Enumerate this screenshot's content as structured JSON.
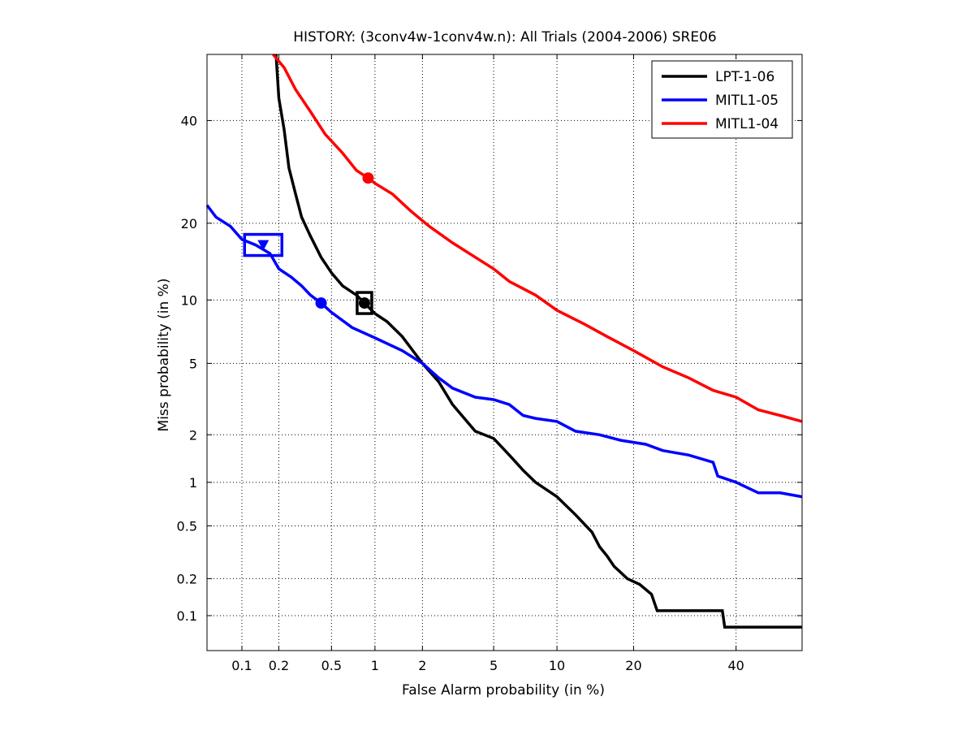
{
  "chart_data": {
    "type": "line",
    "title": "HISTORY: (3conv4w-1conv4w.n): All Trials (2004-2006) SRE06",
    "xlabel": "False Alarm probability (in %)",
    "ylabel": "Miss probability (in %)",
    "x_scale": "probit",
    "y_scale": "probit",
    "xlim": [
      0.05,
      55
    ],
    "ylim": [
      0.05,
      55
    ],
    "x_ticks": [
      0.1,
      0.2,
      0.5,
      1,
      2,
      5,
      10,
      20,
      40
    ],
    "x_tick_labels": [
      "0.1",
      "0.2",
      "0.5",
      "1",
      "2",
      "5",
      "10",
      "20",
      "40"
    ],
    "y_ticks": [
      0.1,
      0.2,
      0.5,
      1,
      2,
      5,
      10,
      20,
      40
    ],
    "y_tick_labels": [
      "0.1",
      "0.2",
      "0.5",
      "1",
      "2",
      "5",
      "10",
      "20",
      "40"
    ],
    "grid": true,
    "legend_position": "top-right",
    "series": [
      {
        "name": "LPT-1-06",
        "color": "#000000",
        "points": [
          [
            0.19,
            55
          ],
          [
            0.2,
            45
          ],
          [
            0.22,
            38
          ],
          [
            0.24,
            30
          ],
          [
            0.27,
            25
          ],
          [
            0.3,
            21
          ],
          [
            0.35,
            18
          ],
          [
            0.42,
            15
          ],
          [
            0.5,
            13
          ],
          [
            0.6,
            11.5
          ],
          [
            0.75,
            10.5
          ],
          [
            0.85,
            9.7
          ],
          [
            1.0,
            8.7
          ],
          [
            1.2,
            8.0
          ],
          [
            1.5,
            6.8
          ],
          [
            2.0,
            5.0
          ],
          [
            2.5,
            4.0
          ],
          [
            3.0,
            3.0
          ],
          [
            4.0,
            2.1
          ],
          [
            5.0,
            1.9
          ],
          [
            6.0,
            1.5
          ],
          [
            7.0,
            1.2
          ],
          [
            8.0,
            1.0
          ],
          [
            10.0,
            0.8
          ],
          [
            12.0,
            0.6
          ],
          [
            14.0,
            0.45
          ],
          [
            15.0,
            0.35
          ],
          [
            16.0,
            0.3
          ],
          [
            17.0,
            0.25
          ],
          [
            19.0,
            0.2
          ],
          [
            21.0,
            0.18
          ],
          [
            23.0,
            0.15
          ],
          [
            24.0,
            0.11
          ],
          [
            37.0,
            0.11
          ],
          [
            37.5,
            0.08
          ],
          [
            55.0,
            0.08
          ]
        ],
        "markers": [
          {
            "x": 0.85,
            "y": 9.7,
            "shape": "circle"
          },
          {
            "x": 0.85,
            "y": 9.7,
            "shape": "square-box"
          }
        ]
      },
      {
        "name": "MITL1-05",
        "color": "#0000ff",
        "points": [
          [
            0.05,
            23
          ],
          [
            0.06,
            21
          ],
          [
            0.08,
            19.5
          ],
          [
            0.1,
            17.5
          ],
          [
            0.13,
            16.7
          ],
          [
            0.17,
            15.5
          ],
          [
            0.2,
            13.5
          ],
          [
            0.25,
            12.5
          ],
          [
            0.3,
            11.5
          ],
          [
            0.35,
            10.5
          ],
          [
            0.42,
            9.7
          ],
          [
            0.5,
            8.8
          ],
          [
            0.7,
            7.5
          ],
          [
            1.0,
            6.7
          ],
          [
            1.5,
            5.8
          ],
          [
            2.0,
            5.0
          ],
          [
            2.5,
            4.2
          ],
          [
            3.0,
            3.7
          ],
          [
            4.0,
            3.3
          ],
          [
            5.0,
            3.2
          ],
          [
            6.0,
            3.0
          ],
          [
            7.0,
            2.6
          ],
          [
            8.0,
            2.5
          ],
          [
            10.0,
            2.4
          ],
          [
            12.0,
            2.1
          ],
          [
            15.0,
            2.0
          ],
          [
            18.0,
            1.85
          ],
          [
            22.0,
            1.75
          ],
          [
            25.0,
            1.6
          ],
          [
            30.0,
            1.5
          ],
          [
            35.0,
            1.35
          ],
          [
            36.0,
            1.1
          ],
          [
            40.0,
            1.0
          ],
          [
            45.0,
            0.85
          ],
          [
            50.0,
            0.85
          ],
          [
            55.0,
            0.8
          ]
        ],
        "markers": [
          {
            "x": 0.42,
            "y": 9.7,
            "shape": "circle"
          },
          {
            "x": 0.15,
            "y": 16.7,
            "shape": "triangle-down"
          },
          {
            "x": 0.15,
            "y": 16.7,
            "shape": "square-box"
          }
        ]
      },
      {
        "name": "MITL1-04",
        "color": "#ff0000",
        "points": [
          [
            0.18,
            55
          ],
          [
            0.22,
            52
          ],
          [
            0.27,
            47
          ],
          [
            0.35,
            42
          ],
          [
            0.45,
            37
          ],
          [
            0.6,
            33
          ],
          [
            0.75,
            29.5
          ],
          [
            0.9,
            28
          ],
          [
            1.0,
            27
          ],
          [
            1.3,
            25
          ],
          [
            1.7,
            22
          ],
          [
            2.2,
            19.5
          ],
          [
            3.0,
            17
          ],
          [
            4.0,
            15
          ],
          [
            5.0,
            13.5
          ],
          [
            6.0,
            12
          ],
          [
            8.0,
            10.5
          ],
          [
            10.0,
            9.0
          ],
          [
            13.0,
            7.8
          ],
          [
            16.0,
            6.8
          ],
          [
            20.0,
            5.8
          ],
          [
            25.0,
            4.8
          ],
          [
            30.0,
            4.2
          ],
          [
            35.0,
            3.6
          ],
          [
            40.0,
            3.3
          ],
          [
            45.0,
            2.8
          ],
          [
            50.0,
            2.6
          ],
          [
            55.0,
            2.4
          ]
        ],
        "markers": [
          {
            "x": 0.9,
            "y": 28,
            "shape": "circle"
          }
        ]
      }
    ]
  }
}
